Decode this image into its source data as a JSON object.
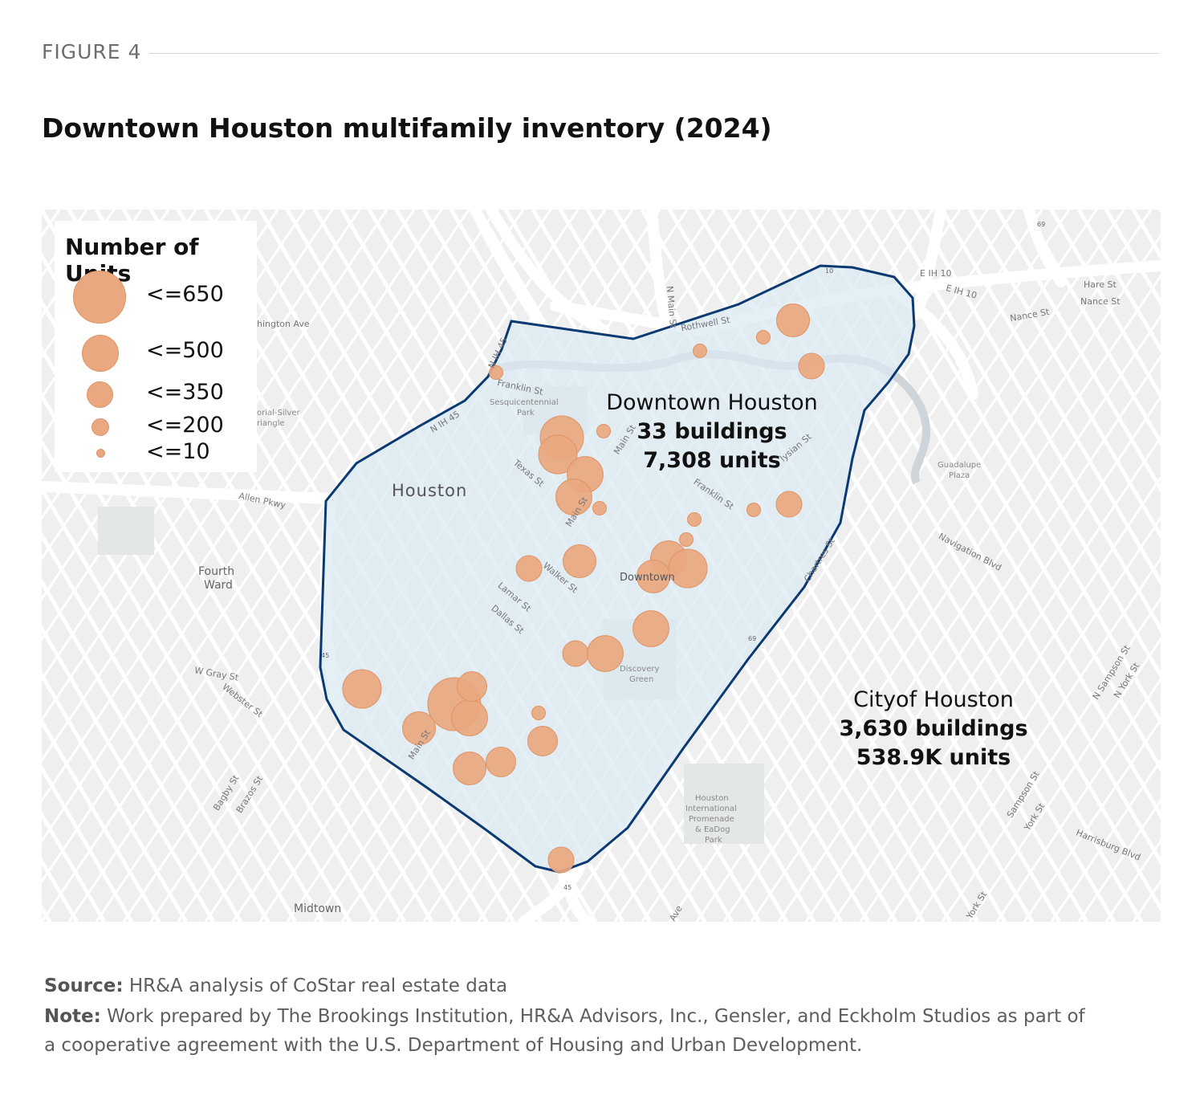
{
  "figure_label": "FIGURE 4",
  "title": "Downtown Houston multifamily inventory (2024)",
  "legend": {
    "title": "Number of Units",
    "items": [
      {
        "label": "<=650",
        "max_units": 650
      },
      {
        "label": "<=500",
        "max_units": 500
      },
      {
        "label": "<=350",
        "max_units": 350
      },
      {
        "label": "<=200",
        "max_units": 200
      },
      {
        "label": "<=10",
        "max_units": 10
      }
    ]
  },
  "annotations": {
    "downtown": {
      "name": "Downtown Houston",
      "buildings": "33 buildings",
      "units": "7,308 units"
    },
    "city": {
      "name": "Cityof Houston",
      "buildings": "3,630 buildings",
      "units": "538.9K units"
    }
  },
  "place_labels": {
    "houston": "Houston",
    "fourth_ward_1": "Fourth",
    "fourth_ward_2": "Ward",
    "downtown": "Downtown",
    "midtown": "Midtown",
    "discovery_1": "Discovery",
    "discovery_2": "Green",
    "sesqui_1": "Sesquicentennial",
    "sesqui_2": "Park",
    "guadalupe_1": "Guadalupe",
    "guadalupe_2": "Plaza",
    "promenade_1": "Houston",
    "promenade_2": "International",
    "promenade_3": "Promenade",
    "promenade_4": "& EaDog",
    "promenade_5": "Park"
  },
  "street_labels": {
    "washington": "hington Ave",
    "allen": "Allen Pkwy",
    "franklin1": "Franklin St",
    "franklin2": "Franklin St",
    "texas": "Texas St",
    "main1": "Main St",
    "main2": "Main St",
    "main3": "Main St",
    "nmain": "N Main St",
    "walker": "Walker St",
    "lamar": "Lamar St",
    "dallas": "Dallas St",
    "wgray": "W Gray St",
    "webster": "Webster St",
    "bagby": "Bagby St",
    "brazos": "Brazos St",
    "eih10a": "E IH 10",
    "eih10b": "E IH 10",
    "nance1": "Nance St",
    "nance2": "Nance St",
    "hare": "Hare St",
    "navigation": "Navigation Blvd",
    "chartres": "Chartres St",
    "elysian": "lysian St",
    "rothwell": "Rothwell St",
    "nih45a": "N IH 45",
    "nih45b": "N IH 45",
    "nsampson": "N Sampson St",
    "nyork": "N York St",
    "sampson": "Sampson St",
    "york1": "York St",
    "york2": "York St",
    "harrisburg": "Harrisburg Blvd",
    "memorial_1": "orial-Silver",
    "memorial_2": "riangle",
    "ave": "Ave",
    "shield10": "10",
    "shield45a": "45",
    "shield45b": "45",
    "shield69a": "69",
    "shield69b": "69"
  },
  "buildings": [
    {
      "units": 400,
      "loc": "Main St / Franklin"
    },
    {
      "units": 300,
      "loc": "Main St / Texas"
    },
    {
      "units": 250,
      "loc": "Main St"
    },
    {
      "units": 250,
      "loc": "Main St / Texas"
    },
    {
      "units": 10,
      "loc": "Main St"
    },
    {
      "units": 10,
      "loc": "N Main St"
    },
    {
      "units": 10,
      "loc": "IH 45"
    },
    {
      "units": 200,
      "loc": "Rothwell"
    },
    {
      "units": 10,
      "loc": "Rothwell"
    },
    {
      "units": 10,
      "loc": "Rothwell"
    },
    {
      "units": 100,
      "loc": "Elysian"
    },
    {
      "units": 10,
      "loc": "Franklin"
    },
    {
      "units": 100,
      "loc": "Franklin"
    },
    {
      "units": 10,
      "loc": "Downtown"
    },
    {
      "units": 10,
      "loc": "Downtown"
    },
    {
      "units": 250,
      "loc": "Downtown"
    },
    {
      "units": 300,
      "loc": "Downtown"
    },
    {
      "units": 200,
      "loc": "Downtown"
    },
    {
      "units": 200,
      "loc": "Walker"
    },
    {
      "units": 100,
      "loc": "Walker"
    },
    {
      "units": 250,
      "loc": "Dallas"
    },
    {
      "units": 100,
      "loc": "Dallas"
    },
    {
      "units": 250,
      "loc": "Dallas"
    },
    {
      "units": 300,
      "loc": "W Gray"
    },
    {
      "units": 650,
      "loc": "Main St south"
    },
    {
      "units": 250,
      "loc": "Main St south"
    },
    {
      "units": 150,
      "loc": "Main St south"
    },
    {
      "units": 200,
      "loc": "Main St south"
    },
    {
      "units": 150,
      "loc": "Main St south"
    },
    {
      "units": 150,
      "loc": "Main St south"
    },
    {
      "units": 10,
      "loc": "Main St south"
    },
    {
      "units": 200,
      "loc": "Main St south"
    },
    {
      "units": 100,
      "loc": "IH 45 south"
    }
  ],
  "footer": {
    "source_label": "Source:",
    "source_text": " HR&A analysis of CoStar real estate data",
    "note_label": "Note:",
    "note_line1": " Work prepared by The Brookings Institution, HR&A Advisors, Inc., Gensler, and Eckholm Studios as part of",
    "note_line2": "a cooperative agreement with the U.S. Department of Housing and Urban Development."
  },
  "colors": {
    "bubble": "#e9a87f",
    "bubble_stroke": "#df9468",
    "boundary": "#0b3a73",
    "boundary_fill": "#dbe9f3"
  }
}
